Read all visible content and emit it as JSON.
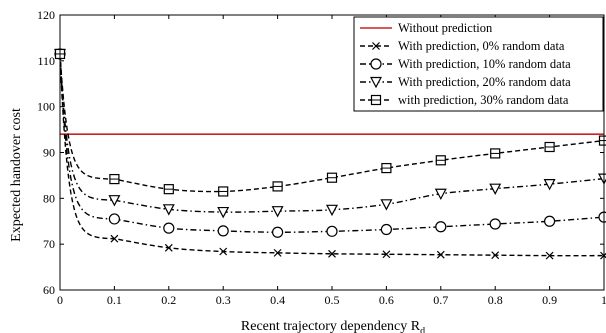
{
  "chart_data": {
    "type": "line",
    "xlabel": "Recent trajectory dependency R",
    "xlabel_subscript": "d",
    "ylabel": "Expected handover cost",
    "xlim": [
      0,
      1
    ],
    "ylim": [
      60,
      120
    ],
    "x_ticks": [
      "0",
      "0.1",
      "0.2",
      "0.3",
      "0.4",
      "0.5",
      "0.6",
      "0.7",
      "0.8",
      "0.9",
      "1"
    ],
    "y_ticks": [
      "60",
      "70",
      "80",
      "90",
      "100",
      "110",
      "120"
    ],
    "legend_position": "top-right",
    "grid": false,
    "x": [
      0,
      0.1,
      0.2,
      0.3,
      0.4,
      0.5,
      0.6,
      0.7,
      0.8,
      0.9,
      1.0
    ],
    "series": [
      {
        "name": "Without prediction",
        "color": "#cc2222",
        "style": "solid",
        "marker": "none",
        "values": [
          94,
          94,
          94,
          94,
          94,
          94,
          94,
          94,
          94,
          94,
          94
        ]
      },
      {
        "name": "With prediction, 0% random data",
        "color": "#000000",
        "style": "dashed",
        "marker": "x",
        "values": [
          111.5,
          71.2,
          69.2,
          68.4,
          68.1,
          67.9,
          67.8,
          67.7,
          67.6,
          67.5,
          67.5
        ]
      },
      {
        "name": "With prediction, 10% random data",
        "color": "#000000",
        "style": "dashdot",
        "marker": "circle",
        "values": [
          111.5,
          75.5,
          73.5,
          72.9,
          72.6,
          72.8,
          73.2,
          73.8,
          74.4,
          75.0,
          75.9
        ]
      },
      {
        "name": "With prediction, 20% random data",
        "color": "#000000",
        "style": "dashdot",
        "marker": "triangle-down",
        "values": [
          111.5,
          79.6,
          77.6,
          77.0,
          77.2,
          77.5,
          78.7,
          81.0,
          82.1,
          83.1,
          84.3
        ]
      },
      {
        "name": "with prediction, 30% random data",
        "color": "#000000",
        "style": "dashed",
        "marker": "square",
        "values": [
          111.5,
          84.2,
          82.0,
          81.5,
          82.6,
          84.5,
          86.6,
          88.3,
          89.8,
          91.2,
          92.6
        ]
      }
    ]
  }
}
